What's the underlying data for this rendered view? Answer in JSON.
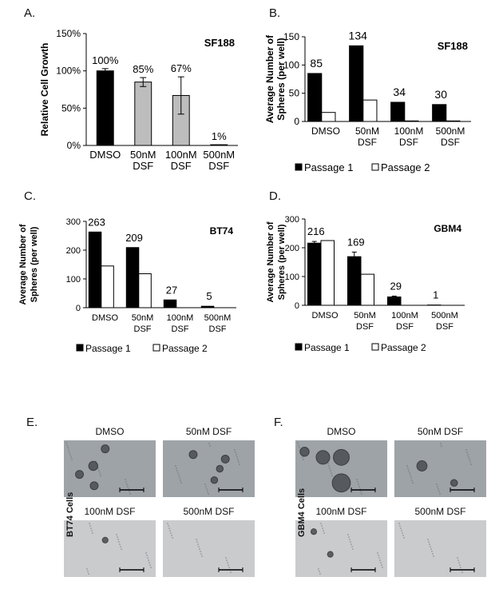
{
  "colors": {
    "black_bar": "#000000",
    "gray_bar": "#bdbdbd",
    "white_bar": "#ffffff",
    "microscopy_bg": "#b4b8bd"
  },
  "chart_data": [
    {
      "panel": "A.",
      "type": "bar",
      "title": "SF188",
      "ylabel": "Relative Cell Growth",
      "categories": [
        "DMSO",
        "50nM DSF",
        "100nM DSF",
        "500nM DSF"
      ],
      "category_lines": [
        [
          "DMSO"
        ],
        [
          "50nM",
          "DSF"
        ],
        [
          "100nM",
          "DSF"
        ],
        [
          "500nM",
          "DSF"
        ]
      ],
      "values": [
        100,
        85,
        67,
        1
      ],
      "errors": [
        3,
        6,
        25,
        0
      ],
      "data_labels": [
        "100%",
        "85%",
        "67%",
        "1%"
      ],
      "bar_colors": [
        "#000000",
        "#bdbdbd",
        "#bdbdbd",
        "#bdbdbd"
      ],
      "ylim": [
        0,
        150
      ],
      "yticks": [
        0,
        50,
        100,
        150
      ],
      "ytick_labels": [
        "0%",
        "50%",
        "100%",
        "150%"
      ],
      "grid": false
    },
    {
      "panel": "B.",
      "type": "bar",
      "title": "SF188",
      "ylabel": "Average Number of Spheres (per well)",
      "ylabel_lines": [
        "Average Number of",
        "Spheres (per well)"
      ],
      "categories": [
        "DMSO",
        "50nM DSF",
        "100nM DSF",
        "500nM DSF"
      ],
      "category_lines": [
        [
          "DMSO"
        ],
        [
          "50nM",
          "DSF"
        ],
        [
          "100nM",
          "DSF"
        ],
        [
          "500nM",
          "DSF"
        ]
      ],
      "series": [
        {
          "name": "Passage 1",
          "values": [
            85,
            134,
            34,
            30
          ],
          "color": "#000000"
        },
        {
          "name": "Passage 2",
          "values": [
            16,
            38,
            1,
            1
          ],
          "color": "#ffffff"
        }
      ],
      "data_labels": [
        "85",
        "134",
        "34",
        "30"
      ],
      "ylim": [
        0,
        150
      ],
      "yticks": [
        0,
        50,
        100,
        150
      ],
      "ytick_labels": [
        "0",
        "50",
        "100",
        "150"
      ],
      "legend": "bottom"
    },
    {
      "panel": "C.",
      "type": "bar",
      "title": "BT74",
      "ylabel": "Average Number of Spheres (per well)",
      "ylabel_lines": [
        "Average Number of",
        "Spheres (per well)"
      ],
      "categories": [
        "DMSO",
        "50nM DSF",
        "100nM DSF",
        "500nM DSF"
      ],
      "category_lines": [
        [
          "DMSO"
        ],
        [
          "50nM",
          "DSF"
        ],
        [
          "100nM",
          "DSF"
        ],
        [
          "500nM",
          "DSF"
        ]
      ],
      "series": [
        {
          "name": "Passage 1",
          "values": [
            263,
            209,
            27,
            5
          ],
          "color": "#000000"
        },
        {
          "name": "Passage 2",
          "values": [
            145,
            118,
            0,
            0
          ],
          "color": "#ffffff"
        }
      ],
      "data_labels": [
        "263",
        "209",
        "27",
        "5"
      ],
      "ylim": [
        0,
        300
      ],
      "yticks": [
        0,
        100,
        200,
        300
      ],
      "ytick_labels": [
        "0",
        "100",
        "200",
        "300"
      ],
      "legend": "bottom"
    },
    {
      "panel": "D.",
      "type": "bar",
      "title": "GBM4",
      "ylabel": "Average Number of Spheres (per well)",
      "ylabel_lines": [
        "Average Number of",
        "Spheres (per well)"
      ],
      "categories": [
        "DMSO",
        "50nM DSF",
        "100nM DSF",
        "500nM DSF"
      ],
      "category_lines": [
        [
          "DMSO"
        ],
        [
          "50nM",
          "DSF"
        ],
        [
          "100nM",
          "DSF"
        ],
        [
          "500nM",
          "DSF"
        ]
      ],
      "series": [
        {
          "name": "Passage 1",
          "values": [
            216,
            169,
            29,
            1
          ],
          "errors": [
            6,
            16,
            3,
            0
          ],
          "color": "#000000"
        },
        {
          "name": "Passage 2",
          "values": [
            225,
            108,
            0,
            0
          ],
          "color": "#ffffff"
        }
      ],
      "data_labels": [
        "216",
        "169",
        "29",
        "1"
      ],
      "ylim": [
        0,
        300
      ],
      "yticks": [
        0,
        100,
        200,
        300
      ],
      "ytick_labels": [
        "0",
        "100",
        "200",
        "300"
      ],
      "legend": "bottom"
    }
  ],
  "micrographs": [
    {
      "panel": "E.",
      "side_label": "BT74 Cells",
      "cells": [
        {
          "label": "DMSO",
          "spheres": [
            [
              0.45,
              0.15,
              0.07
            ],
            [
              0.32,
              0.45,
              0.08
            ],
            [
              0.17,
              0.6,
              0.07
            ],
            [
              0.33,
              0.8,
              0.07
            ]
          ]
        },
        {
          "label": "50nM DSF",
          "spheres": [
            [
              0.33,
              0.25,
              0.07
            ],
            [
              0.68,
              0.33,
              0.07
            ],
            [
              0.62,
              0.5,
              0.06
            ],
            [
              0.56,
              0.7,
              0.06
            ]
          ]
        },
        {
          "label": "100nM DSF",
          "spheres": [
            [
              0.45,
              0.35,
              0.05
            ]
          ]
        },
        {
          "label": "500nM DSF",
          "spheres": []
        }
      ]
    },
    {
      "panel": "F.",
      "side_label": "GBM4 Cells",
      "cells": [
        {
          "label": "DMSO",
          "spheres": [
            [
              0.3,
              0.3,
              0.12
            ],
            [
              0.5,
              0.3,
              0.14
            ],
            [
              0.5,
              0.75,
              0.16
            ],
            [
              0.1,
              0.2,
              0.08
            ]
          ]
        },
        {
          "label": "50nM DSF",
          "spheres": [
            [
              0.3,
              0.45,
              0.09
            ],
            [
              0.65,
              0.75,
              0.06
            ]
          ]
        },
        {
          "label": "100nM DSF",
          "spheres": [
            [
              0.2,
              0.2,
              0.05
            ],
            [
              0.38,
              0.6,
              0.05
            ]
          ]
        },
        {
          "label": "500nM DSF",
          "spheres": []
        }
      ]
    }
  ]
}
